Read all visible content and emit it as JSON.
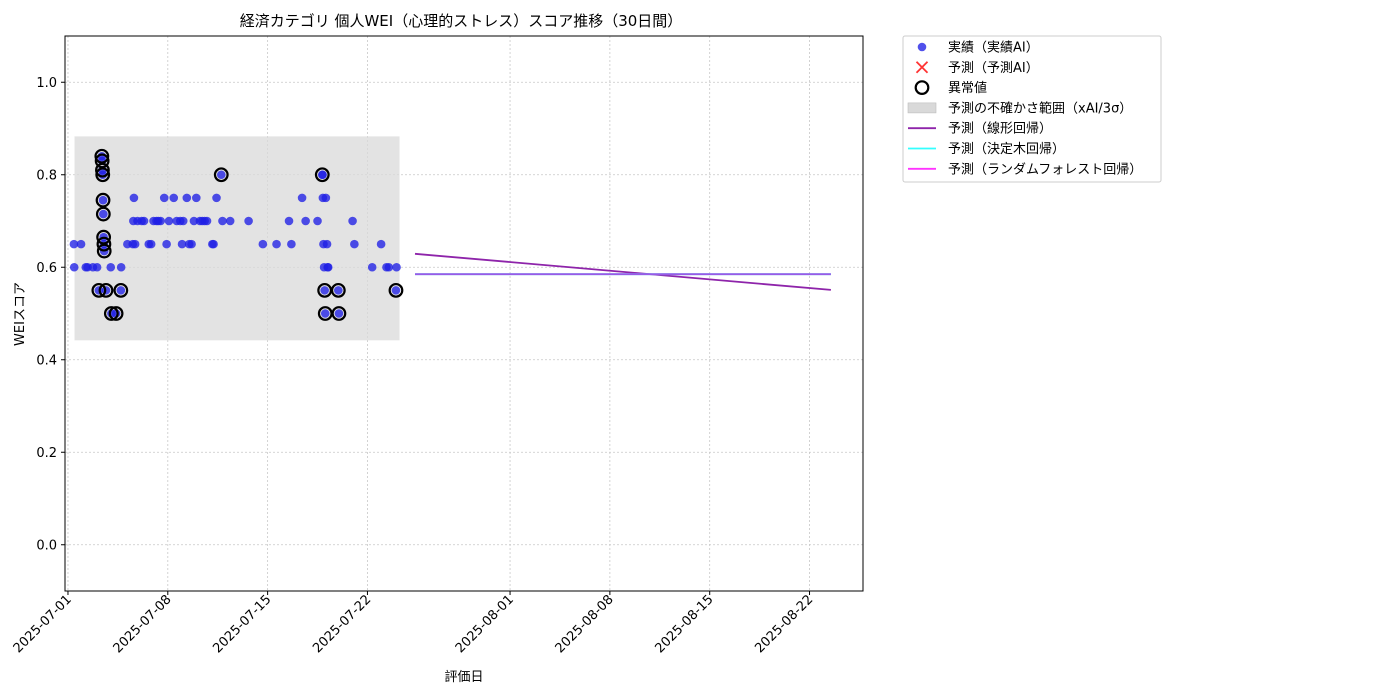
{
  "chart_data": {
    "type": "scatter",
    "title": "経済カテゴリ 個人WEI（心理的ストレス）スコア推移（30日間）",
    "xlabel": "評価日",
    "ylabel": "WEIスコア",
    "ylim": [
      -0.1,
      1.1
    ],
    "yticks": [
      0.0,
      0.2,
      0.4,
      0.6,
      0.8,
      1.0
    ],
    "ytick_labels": [
      "0.0",
      "0.2",
      "0.4",
      "0.6",
      "0.8",
      "1.0"
    ],
    "xlim": [
      "2025-06-30",
      "2025-08-25"
    ],
    "xticks": [
      "2025-07-01",
      "2025-07-08",
      "2025-07-15",
      "2025-07-22",
      "2025-08-01",
      "2025-08-08",
      "2025-08-15",
      "2025-08-22"
    ],
    "grid": true,
    "legend_position": "outside-top-right",
    "colors": {
      "actual": "#1f1fe6",
      "predicted": "#ff3333",
      "outlier_edge": "#000000",
      "band": "#d9d9d9",
      "linear": "#8e24aa",
      "tree": "#33ffff",
      "forest": "#ff33ff",
      "forest_drawn": "#9b59e6"
    },
    "uncertainty_band": {
      "label": "予測の不確かさ範囲（xAI/3σ）",
      "x": [
        "2025-07-01 11:00",
        "2025-07-24 06:00"
      ],
      "y": [
        0.442,
        0.883
      ]
    },
    "series": [
      {
        "name": "実績（実績AI）",
        "kind": "scatter",
        "points": [
          [
            "2025-07-01 10:00",
            0.65
          ],
          [
            "2025-07-01 10:30",
            0.6
          ],
          [
            "2025-07-01 22:00",
            0.65
          ],
          [
            "2025-07-02 06:00",
            0.6
          ],
          [
            "2025-07-02 09:00",
            0.6
          ],
          [
            "2025-07-02 18:00",
            0.6
          ],
          [
            "2025-07-03 01:00",
            0.6
          ],
          [
            "2025-07-03 04:00",
            0.55
          ],
          [
            "2025-07-03 09:00",
            0.84
          ],
          [
            "2025-07-03 09:30",
            0.83
          ],
          [
            "2025-07-03 10:00",
            0.81
          ],
          [
            "2025-07-03 10:30",
            0.8
          ],
          [
            "2025-07-03 11:00",
            0.745
          ],
          [
            "2025-07-03 11:30",
            0.715
          ],
          [
            "2025-07-03 12:00",
            0.665
          ],
          [
            "2025-07-03 12:30",
            0.65
          ],
          [
            "2025-07-03 13:00",
            0.635
          ],
          [
            "2025-07-03 16:00",
            0.55
          ],
          [
            "2025-07-04 00:00",
            0.6
          ],
          [
            "2025-07-04 01:00",
            0.5
          ],
          [
            "2025-07-04 09:00",
            0.5
          ],
          [
            "2025-07-04 17:00",
            0.55
          ],
          [
            "2025-07-04 17:30",
            0.6
          ],
          [
            "2025-07-05 04:00",
            0.65
          ],
          [
            "2025-07-05 13:00",
            0.65
          ],
          [
            "2025-07-05 14:00",
            0.7
          ],
          [
            "2025-07-05 15:00",
            0.75
          ],
          [
            "2025-07-05 17:00",
            0.65
          ],
          [
            "2025-07-05 21:00",
            0.7
          ],
          [
            "2025-07-06 04:00",
            0.7
          ],
          [
            "2025-07-06 08:00",
            0.7
          ],
          [
            "2025-07-06 16:00",
            0.65
          ],
          [
            "2025-07-06 20:00",
            0.65
          ],
          [
            "2025-07-07 00:00",
            0.7
          ],
          [
            "2025-07-07 05:00",
            0.7
          ],
          [
            "2025-07-07 08:00",
            0.7
          ],
          [
            "2025-07-07 12:00",
            0.7
          ],
          [
            "2025-07-07 18:00",
            0.75
          ],
          [
            "2025-07-07 22:00",
            0.65
          ],
          [
            "2025-07-08 02:00",
            0.7
          ],
          [
            "2025-07-08 10:00",
            0.75
          ],
          [
            "2025-07-08 15:00",
            0.7
          ],
          [
            "2025-07-08 21:00",
            0.7
          ],
          [
            "2025-07-09 00:00",
            0.65
          ],
          [
            "2025-07-09 02:00",
            0.7
          ],
          [
            "2025-07-09 08:00",
            0.75
          ],
          [
            "2025-07-09 12:00",
            0.65
          ],
          [
            "2025-07-09 16:00",
            0.65
          ],
          [
            "2025-07-09 20:00",
            0.7
          ],
          [
            "2025-07-10 00:00",
            0.75
          ],
          [
            "2025-07-10 06:00",
            0.7
          ],
          [
            "2025-07-10 10:00",
            0.7
          ],
          [
            "2025-07-10 14:00",
            0.7
          ],
          [
            "2025-07-10 18:00",
            0.7
          ],
          [
            "2025-07-11 03:00",
            0.65
          ],
          [
            "2025-07-11 05:00",
            0.65
          ],
          [
            "2025-07-11 10:00",
            0.75
          ],
          [
            "2025-07-11 18:00",
            0.8
          ],
          [
            "2025-07-11 20:00",
            0.7
          ],
          [
            "2025-07-12 09:00",
            0.7
          ],
          [
            "2025-07-13 16:00",
            0.7
          ],
          [
            "2025-07-14 16:00",
            0.65
          ],
          [
            "2025-07-15 15:00",
            0.65
          ],
          [
            "2025-07-16 12:00",
            0.7
          ],
          [
            "2025-07-16 16:00",
            0.65
          ],
          [
            "2025-07-17 10:00",
            0.75
          ],
          [
            "2025-07-17 16:00",
            0.7
          ],
          [
            "2025-07-18 12:00",
            0.7
          ],
          [
            "2025-07-18 20:00",
            0.8
          ],
          [
            "2025-07-18 20:30",
            0.8
          ],
          [
            "2025-07-18 21:00",
            0.75
          ],
          [
            "2025-07-18 22:00",
            0.65
          ],
          [
            "2025-07-18 23:00",
            0.6
          ],
          [
            "2025-07-19 00:00",
            0.55
          ],
          [
            "2025-07-19 01:00",
            0.5
          ],
          [
            "2025-07-19 02:00",
            0.75
          ],
          [
            "2025-07-19 04:00",
            0.65
          ],
          [
            "2025-07-19 05:00",
            0.6
          ],
          [
            "2025-07-19 06:00",
            0.6
          ],
          [
            "2025-07-19 23:00",
            0.55
          ],
          [
            "2025-07-20 00:00",
            0.5
          ],
          [
            "2025-07-20 23:00",
            0.7
          ],
          [
            "2025-07-21 02:00",
            0.65
          ],
          [
            "2025-07-22 08:00",
            0.6
          ],
          [
            "2025-07-22 23:00",
            0.65
          ],
          [
            "2025-07-23 08:00",
            0.6
          ],
          [
            "2025-07-23 12:00",
            0.6
          ],
          [
            "2025-07-24 00:00",
            0.55
          ],
          [
            "2025-07-24 01:00",
            0.6
          ]
        ]
      },
      {
        "name": "予測（予測AI）",
        "kind": "scatter",
        "points": []
      },
      {
        "name": "異常値",
        "kind": "outlier",
        "points": [
          [
            "2025-07-03 04:00",
            0.55
          ],
          [
            "2025-07-03 09:00",
            0.84
          ],
          [
            "2025-07-03 09:30",
            0.83
          ],
          [
            "2025-07-03 10:00",
            0.81
          ],
          [
            "2025-07-03 10:30",
            0.8
          ],
          [
            "2025-07-03 11:00",
            0.745
          ],
          [
            "2025-07-03 11:30",
            0.715
          ],
          [
            "2025-07-03 12:00",
            0.665
          ],
          [
            "2025-07-03 12:30",
            0.65
          ],
          [
            "2025-07-03 13:00",
            0.635
          ],
          [
            "2025-07-03 16:00",
            0.55
          ],
          [
            "2025-07-04 01:00",
            0.5
          ],
          [
            "2025-07-04 09:00",
            0.5
          ],
          [
            "2025-07-04 17:00",
            0.55
          ],
          [
            "2025-07-11 18:00",
            0.8
          ],
          [
            "2025-07-18 20:00",
            0.8
          ],
          [
            "2025-07-19 00:00",
            0.55
          ],
          [
            "2025-07-19 01:00",
            0.5
          ],
          [
            "2025-07-19 23:00",
            0.55
          ],
          [
            "2025-07-20 00:00",
            0.5
          ],
          [
            "2025-07-24 00:00",
            0.55
          ]
        ]
      },
      {
        "name": "予測（線形回帰）",
        "kind": "line",
        "points": [
          [
            "2025-07-25 08:00",
            0.629
          ],
          [
            "2025-08-23 12:00",
            0.551
          ]
        ]
      },
      {
        "name": "予測（決定木回帰）",
        "kind": "line",
        "points": [
          [
            "2025-07-25 08:00",
            0.585
          ],
          [
            "2025-08-23 12:00",
            0.585
          ]
        ]
      },
      {
        "name": "予測（ランダムフォレスト回帰）",
        "kind": "line",
        "points": [
          [
            "2025-07-25 08:00",
            0.585
          ],
          [
            "2025-08-23 12:00",
            0.585
          ]
        ]
      }
    ],
    "legend": [
      {
        "key": "actual",
        "label": "実績（実績AI）"
      },
      {
        "key": "predicted",
        "label": "予測（予測AI）"
      },
      {
        "key": "outlier",
        "label": "異常値"
      },
      {
        "key": "band",
        "label": "予測の不確かさ範囲（xAI/3σ）"
      },
      {
        "key": "linear",
        "label": "予測（線形回帰）"
      },
      {
        "key": "tree",
        "label": "予測（決定木回帰）"
      },
      {
        "key": "forest",
        "label": "予測（ランダムフォレスト回帰）"
      }
    ]
  }
}
